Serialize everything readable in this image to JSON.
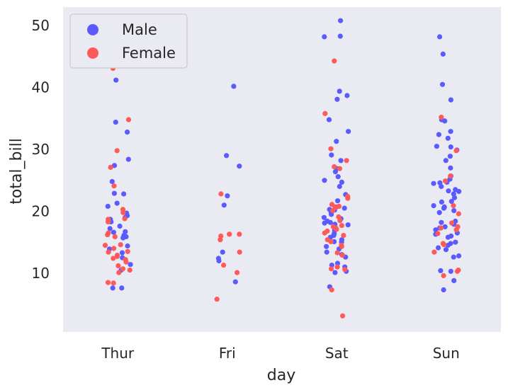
{
  "chart_data": {
    "type": "scatter",
    "subtype": "strip",
    "title": "",
    "xlabel": "day",
    "ylabel": "total_bill",
    "categories": [
      "Thur",
      "Fri",
      "Sat",
      "Sun"
    ],
    "ylim": [
      0.5,
      53
    ],
    "yticks": [
      10,
      20,
      30,
      40,
      50
    ],
    "grid": false,
    "legend_position": "top-left",
    "colors": {
      "background": "#eaeaf2",
      "Male": "#5a5aff",
      "Female": "#ff5a5a"
    },
    "series": [
      {
        "name": "Male",
        "points": [
          {
            "day": "Thur",
            "values": [
              7.6,
              7.6,
              10.5,
              11.4,
              12.5,
              13.3,
              13.9,
              14.4,
              15.7,
              15.9,
              16.1,
              16.6,
              16.7,
              17.2,
              17.6,
              18.3,
              18.7,
              19.0,
              19.3,
              19.7,
              20.8,
              21.3,
              22.8,
              22.9,
              24.8,
              27.4,
              28.4,
              32.8,
              34.4,
              41.2
            ]
          },
          {
            "day": "Fri",
            "values": [
              8.6,
              12.0,
              12.4,
              13.4,
              21.0,
              22.5,
              27.3,
              29.0,
              40.2
            ]
          },
          {
            "day": "Sat",
            "values": [
              7.8,
              10.1,
              10.3,
              11.0,
              11.3,
              11.6,
              12.6,
              13.0,
              13.4,
              13.9,
              14.3,
              15.0,
              15.1,
              15.4,
              15.8,
              16.1,
              16.4,
              16.9,
              17.8,
              17.9,
              18.1,
              18.2,
              18.4,
              18.8,
              19.0,
              19.5,
              19.8,
              20.2,
              20.3,
              20.5,
              20.7,
              21.7,
              22.7,
              24.0,
              24.7,
              25.0,
              25.6,
              26.4,
              26.9,
              28.2,
              29.1,
              31.3,
              32.9,
              34.8,
              38.1,
              38.7,
              39.4,
              48.2,
              48.3,
              50.8
            ]
          },
          {
            "day": "Sun",
            "values": [
              7.3,
              8.8,
              10.3,
              10.4,
              12.6,
              12.8,
              13.8,
              14.1,
              14.5,
              14.8,
              15.0,
              15.8,
              16.0,
              16.3,
              16.5,
              17.0,
              17.3,
              17.5,
              17.9,
              18.2,
              18.4,
              19.8,
              20.1,
              20.5,
              20.7,
              20.9,
              21.5,
              21.6,
              22.2,
              22.8,
              23.2,
              23.3,
              23.5,
              24.0,
              24.5,
              24.6,
              24.7,
              25.2,
              25.7,
              27.0,
              28.2,
              28.9,
              29.9,
              30.4,
              30.5,
              31.8,
              32.4,
              32.9,
              34.6,
              34.8,
              38.0,
              40.5,
              45.4,
              48.2
            ]
          }
        ]
      },
      {
        "name": "Female",
        "points": [
          {
            "day": "Thur",
            "values": [
              8.4,
              8.5,
              10.1,
              10.5,
              10.7,
              11.2,
              11.8,
              12.2,
              12.4,
              12.7,
              12.9,
              13.4,
              13.5,
              14.0,
              14.5,
              14.6,
              15.9,
              16.2,
              16.5,
              18.3,
              18.7,
              18.8,
              19.8,
              20.3,
              24.1,
              27.1,
              29.8,
              34.8,
              43.1
            ]
          },
          {
            "day": "Fri",
            "values": [
              5.8,
              10.1,
              11.3,
              13.4,
              15.4,
              16.0,
              16.3,
              16.3,
              22.8
            ]
          },
          {
            "day": "Sat",
            "values": [
              3.1,
              7.3,
              10.6,
              10.7,
              11.0,
              12.9,
              13.3,
              14.3,
              14.5,
              15.1,
              15.4,
              16.1,
              16.5,
              16.8,
              17.1,
              17.3,
              17.5,
              17.7,
              18.5,
              19.1,
              20.1,
              20.6,
              20.7,
              20.8,
              21.1,
              22.1,
              22.4,
              26.9,
              27.2,
              28.2,
              30.1,
              35.8,
              44.3
            ]
          },
          {
            "day": "Sun",
            "values": [
              9.6,
              10.3,
              10.5,
              13.4,
              14.6,
              14.8,
              16.4,
              17.0,
              17.3,
              17.5,
              18.1,
              19.6,
              20.9,
              24.9,
              25.7,
              29.8,
              35.2
            ]
          }
        ]
      }
    ]
  }
}
